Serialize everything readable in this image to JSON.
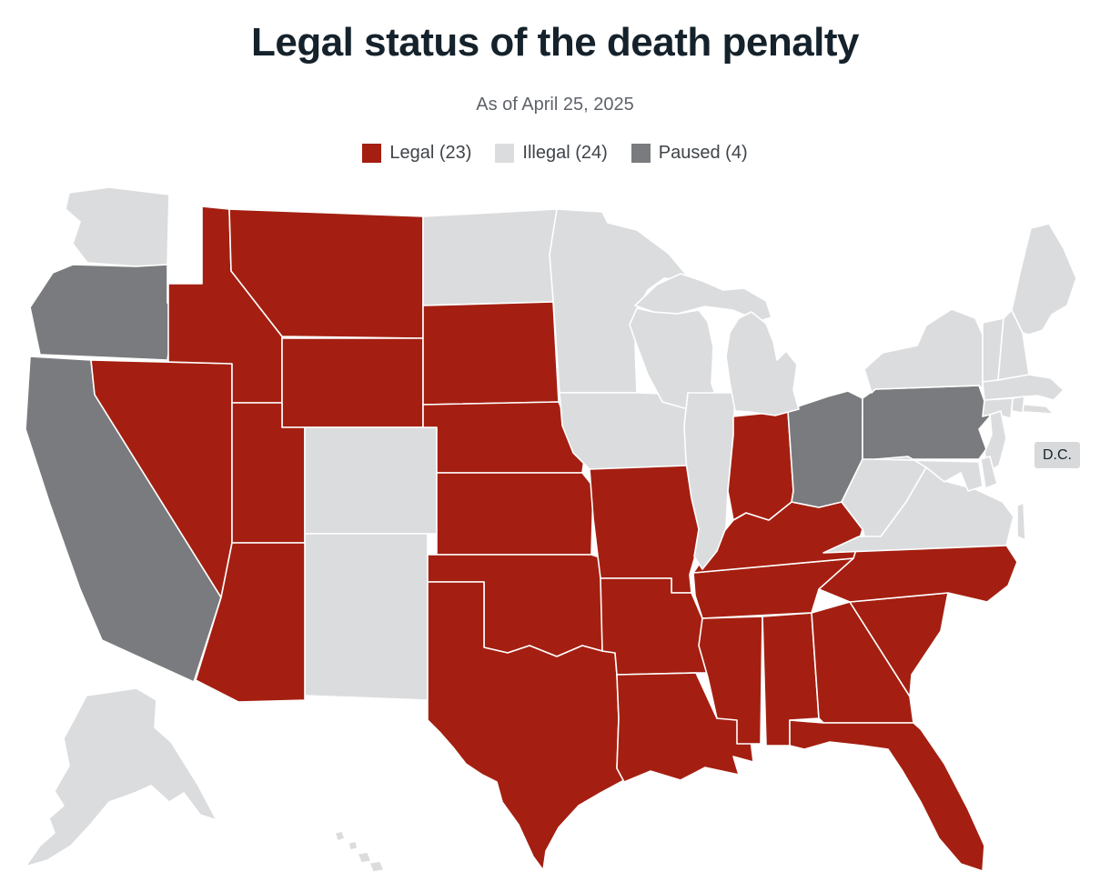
{
  "header": {
    "title": "Legal status of the death penalty",
    "subtitle": "As of April 25, 2025"
  },
  "legend": {
    "items": [
      {
        "key": "legal",
        "label": "Legal (23)"
      },
      {
        "key": "illegal",
        "label": "Illegal (24)"
      },
      {
        "key": "paused",
        "label": "Paused (4)"
      }
    ]
  },
  "map": {
    "dc_label": "D.C."
  },
  "colors": {
    "legal": "#a41f11",
    "illegal": "#dbdcde",
    "paused": "#7a7b7e",
    "state_border": "#ffffff",
    "background": "#ffffff",
    "title_text": "#15222b",
    "subtitle_text": "#5f6369",
    "legend_text": "#3f4449",
    "dc_chip_bg": "#d8d9db"
  },
  "chart_data": {
    "type": "choropleth",
    "title": "Legal status of the death penalty",
    "subtitle": "As of April 25, 2025",
    "legend": [
      {
        "status": "legal",
        "label": "Legal",
        "count": 23
      },
      {
        "status": "illegal",
        "label": "Illegal",
        "count": 24
      },
      {
        "status": "paused",
        "label": "Paused",
        "count": 4
      }
    ],
    "states": {
      "AL": "legal",
      "AK": "illegal",
      "AZ": "legal",
      "AR": "legal",
      "CA": "paused",
      "CO": "illegal",
      "CT": "illegal",
      "DE": "illegal",
      "DC": "illegal",
      "FL": "legal",
      "GA": "legal",
      "HI": "illegal",
      "ID": "legal",
      "IL": "illegal",
      "IN": "legal",
      "IA": "illegal",
      "KS": "legal",
      "KY": "legal",
      "LA": "legal",
      "ME": "illegal",
      "MD": "illegal",
      "MA": "illegal",
      "MI": "illegal",
      "MN": "illegal",
      "MS": "legal",
      "MO": "legal",
      "MT": "legal",
      "NE": "legal",
      "NV": "legal",
      "NH": "illegal",
      "NJ": "illegal",
      "NM": "illegal",
      "NY": "illegal",
      "NC": "legal",
      "ND": "illegal",
      "OH": "paused",
      "OK": "legal",
      "OR": "paused",
      "PA": "paused",
      "RI": "illegal",
      "SC": "legal",
      "SD": "legal",
      "TN": "legal",
      "TX": "legal",
      "UT": "legal",
      "VT": "illegal",
      "VA": "illegal",
      "WA": "illegal",
      "WV": "illegal",
      "WI": "illegal",
      "WY": "legal"
    }
  }
}
